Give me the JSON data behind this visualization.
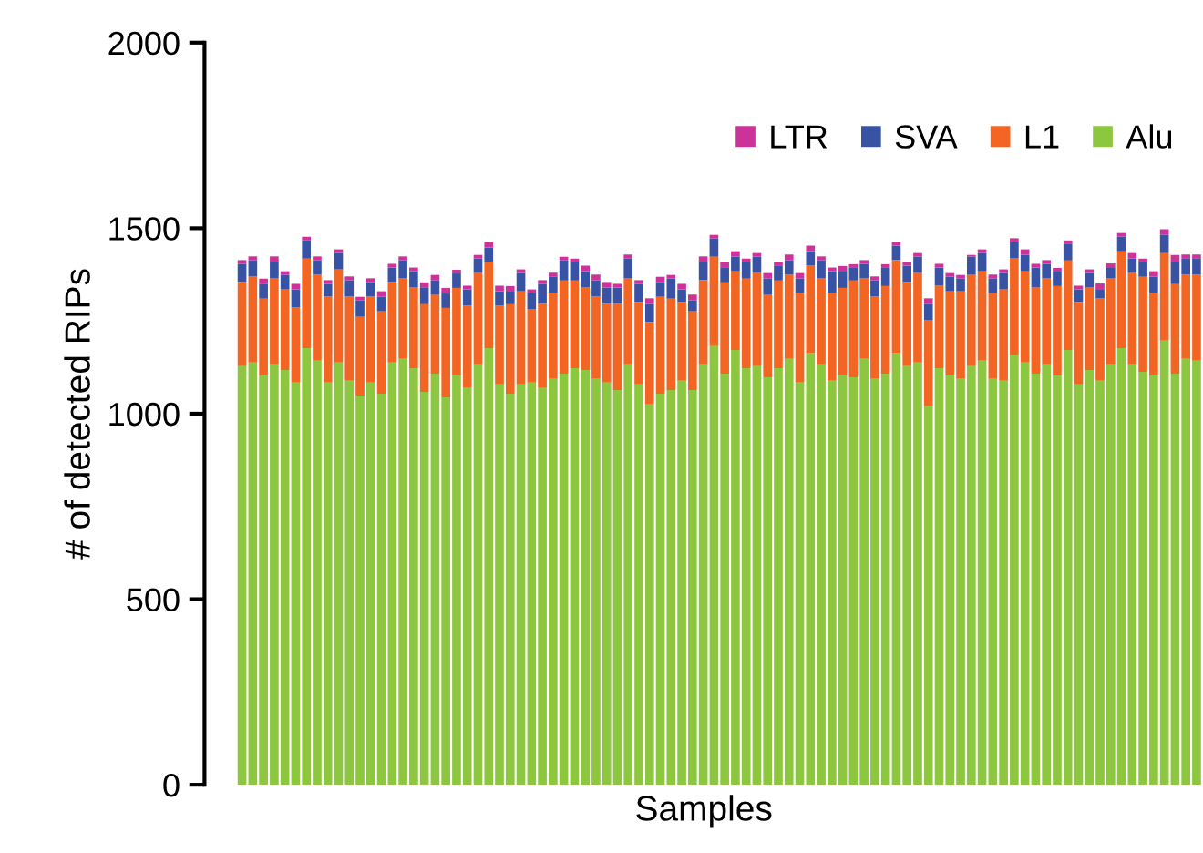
{
  "chart_data": {
    "type": "bar",
    "stacked": true,
    "xlabel": "Samples",
    "ylabel": "# of detected RIPs",
    "categories": [
      null,
      null,
      null,
      null,
      null,
      null,
      null,
      null,
      null,
      null,
      null,
      null,
      null,
      null,
      null,
      null,
      null,
      null,
      null,
      null,
      null,
      null,
      null,
      null,
      null,
      null,
      null,
      null,
      null,
      null,
      null,
      null,
      null,
      null,
      null,
      null,
      null,
      null,
      null,
      null,
      null,
      null,
      null,
      null,
      null,
      null,
      null,
      null,
      null,
      null,
      null,
      null,
      null,
      null,
      null,
      null,
      null,
      null,
      null,
      null,
      null,
      null,
      null,
      null,
      null,
      null,
      null,
      null,
      null,
      null,
      null,
      null,
      null,
      null,
      null,
      null,
      null,
      null,
      null,
      null,
      null,
      null,
      null,
      null,
      null,
      null,
      null,
      null,
      null,
      null
    ],
    "series": [
      {
        "name": "Alu",
        "color": "#8dc63f",
        "values": [
          1128,
          1138,
          1103,
          1133,
          1118,
          1084,
          1177,
          1143,
          1084,
          1138,
          1089,
          1049,
          1084,
          1054,
          1138,
          1148,
          1123,
          1059,
          1108,
          1044,
          1103,
          1069,
          1133,
          1177,
          1079,
          1054,
          1079,
          1084,
          1069,
          1094,
          1108,
          1123,
          1118,
          1094,
          1084,
          1064,
          1133,
          1079,
          1025,
          1054,
          1064,
          1089,
          1064,
          1133,
          1182,
          1108,
          1172,
          1123,
          1128,
          1098,
          1123,
          1148,
          1084,
          1163,
          1133,
          1089,
          1103,
          1098,
          1148,
          1094,
          1108,
          1163,
          1128,
          1138,
          1020,
          1123,
          1103,
          1094,
          1128,
          1143,
          1094,
          1089,
          1158,
          1138,
          1108,
          1133,
          1103,
          1172,
          1079,
          1118,
          1089,
          1133,
          1177,
          1133,
          1113,
          1103,
          1197,
          1108,
          1148,
          1143
        ]
      },
      {
        "name": "L1",
        "color": "#f26522",
        "values": [
          227,
          232,
          207,
          232,
          217,
          202,
          241,
          232,
          232,
          251,
          227,
          212,
          232,
          222,
          217,
          217,
          217,
          236,
          212,
          241,
          236,
          222,
          246,
          232,
          212,
          241,
          251,
          197,
          227,
          232,
          251,
          236,
          222,
          222,
          212,
          232,
          232,
          222,
          222,
          261,
          246,
          212,
          212,
          227,
          241,
          246,
          212,
          241,
          251,
          222,
          236,
          227,
          241,
          236,
          232,
          236,
          236,
          261,
          217,
          222,
          236,
          251,
          227,
          241,
          232,
          222,
          227,
          236,
          246,
          241,
          232,
          246,
          261,
          246,
          232,
          232,
          241,
          241,
          222,
          222,
          222,
          232,
          261,
          246,
          256,
          222,
          236,
          241,
          227,
          232
        ]
      },
      {
        "name": "SVA",
        "color": "#3953a4",
        "values": [
          49,
          44,
          39,
          44,
          39,
          49,
          49,
          39,
          34,
          44,
          44,
          44,
          39,
          39,
          39,
          49,
          44,
          44,
          39,
          39,
          39,
          44,
          39,
          39,
          39,
          34,
          49,
          44,
          54,
          44,
          54,
          49,
          44,
          44,
          44,
          44,
          54,
          49,
          49,
          39,
          54,
          34,
          30,
          49,
          49,
          39,
          39,
          44,
          44,
          44,
          39,
          39,
          39,
          39,
          49,
          59,
          44,
          34,
          39,
          44,
          49,
          39,
          44,
          44,
          44,
          49,
          39,
          34,
          49,
          49,
          39,
          44,
          44,
          44,
          54,
          39,
          39,
          44,
          34,
          39,
          25,
          30,
          39,
          39,
          39,
          44,
          49,
          59,
          44,
          44
        ]
      },
      {
        "name": "LTR",
        "color": "#cc3399",
        "values": [
          10,
          10,
          15,
          15,
          10,
          15,
          10,
          10,
          10,
          10,
          10,
          10,
          10,
          15,
          10,
          10,
          10,
          15,
          15,
          15,
          10,
          10,
          10,
          15,
          15,
          15,
          10,
          10,
          10,
          10,
          10,
          10,
          15,
          15,
          15,
          10,
          10,
          10,
          15,
          15,
          10,
          15,
          15,
          15,
          10,
          15,
          15,
          10,
          10,
          15,
          10,
          15,
          15,
          15,
          10,
          10,
          15,
          10,
          10,
          10,
          10,
          10,
          10,
          10,
          15,
          10,
          10,
          10,
          5,
          10,
          10,
          10,
          10,
          15,
          10,
          10,
          10,
          10,
          10,
          10,
          15,
          10,
          10,
          15,
          10,
          15,
          15,
          20,
          10,
          10
        ]
      }
    ],
    "ylim": [
      0,
      2000
    ],
    "yticks": [
      0,
      500,
      1000,
      1500,
      2000
    ],
    "tick_labels": "y",
    "grid": false,
    "legend": "top right"
  }
}
